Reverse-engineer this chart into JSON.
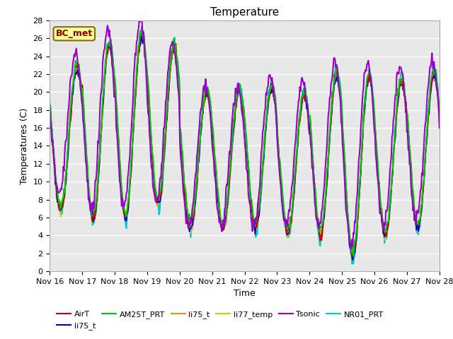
{
  "title": "Temperature",
  "xlabel": "Time",
  "ylabel": "Temperatures (C)",
  "ylim": [
    0,
    28
  ],
  "yticks": [
    0,
    2,
    4,
    6,
    8,
    10,
    12,
    14,
    16,
    18,
    20,
    22,
    24,
    26,
    28
  ],
  "annotation_text": "BC_met",
  "annotation_color": "#8B0000",
  "annotation_bg": "#FFFF99",
  "annotation_border": "#8B6914",
  "series": {
    "AirT": {
      "color": "#CC0000",
      "lw": 1.2
    },
    "li75_t": {
      "color": "#0000CC",
      "lw": 1.2
    },
    "AM25T_PRT": {
      "color": "#00CC00",
      "lw": 1.5
    },
    "li75_t2": {
      "color": "#FF8C00",
      "lw": 1.2
    },
    "li77_temp": {
      "color": "#CCCC00",
      "lw": 1.2
    },
    "Tsonic": {
      "color": "#9900CC",
      "lw": 1.5
    },
    "NR01_PRT": {
      "color": "#00CCCC",
      "lw": 1.5
    }
  },
  "bg_color": "#E8E8E8",
  "fig_bg": "#FFFFFF",
  "grid_color": "#FFFFFF",
  "grid_lw": 0.8,
  "daily_max": [
    22,
    25,
    26.5,
    26.5,
    20,
    20,
    21,
    19,
    22,
    22,
    21,
    22
  ],
  "daily_min": [
    7,
    6,
    6,
    8,
    5,
    5,
    5,
    4.5,
    4.5,
    1.5,
    4,
    5
  ],
  "n_days": 12,
  "n_points": 576
}
